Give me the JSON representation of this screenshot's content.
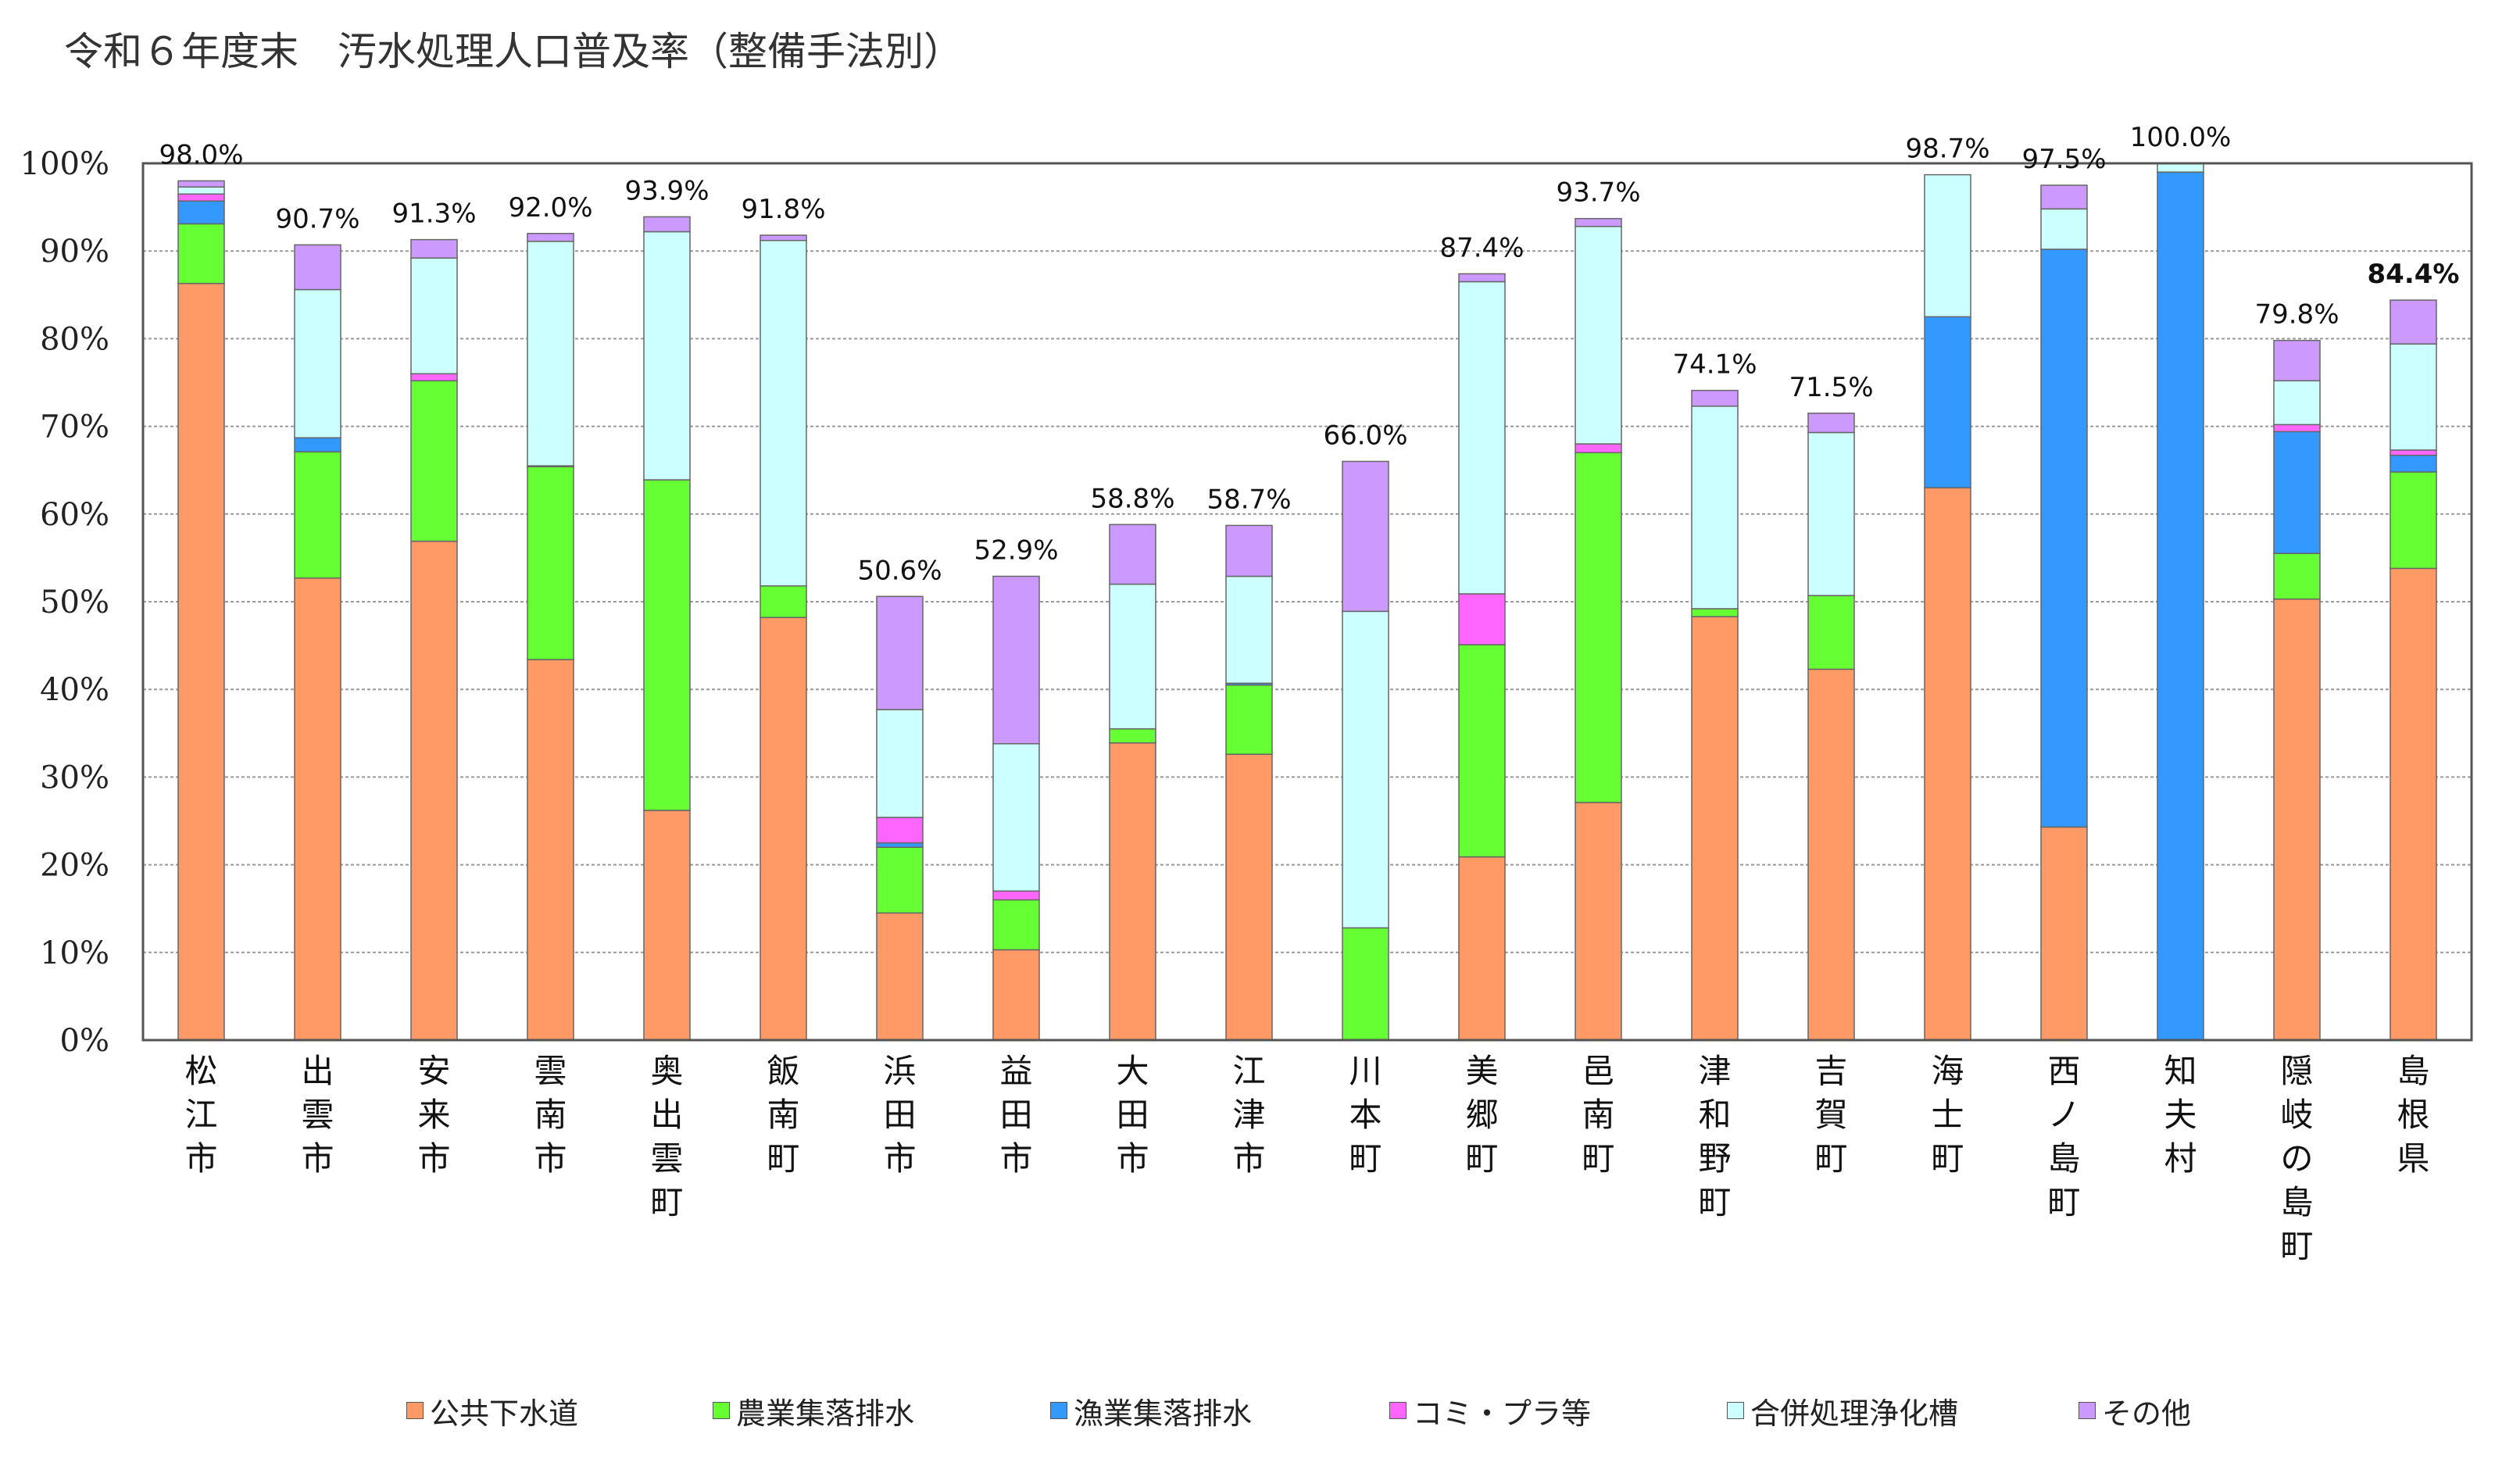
{
  "chart_data": {
    "type": "bar",
    "stacked": true,
    "title": "令和６年度末　汚水処理人口普及率（整備手法別）",
    "ylim": [
      0,
      100
    ],
    "yticks": [
      "0%",
      "10%",
      "20%",
      "30%",
      "40%",
      "50%",
      "60%",
      "70%",
      "80%",
      "90%",
      "100%"
    ],
    "grid": true,
    "legend_position": "bottom",
    "categories": [
      "松江市",
      "出雲市",
      "安来市",
      "雲南市",
      "奥出雲町",
      "飯南町",
      "浜田市",
      "益田市",
      "大田市",
      "江津市",
      "川本町",
      "美郷町",
      "邑南町",
      "津和野町",
      "吉賀町",
      "海士町",
      "西ノ島町",
      "知夫村",
      "隠岐の島町",
      "島根県"
    ],
    "totals": [
      "98.0%",
      "90.7%",
      "91.3%",
      "92.0%",
      "93.9%",
      "91.8%",
      "50.6%",
      "52.9%",
      "58.8%",
      "58.7%",
      "66.0%",
      "87.4%",
      "93.7%",
      "74.1%",
      "71.5%",
      "98.7%",
      "97.5%",
      "100.0%",
      "79.8%",
      "84.4%"
    ],
    "total_colors": [
      "#111111",
      "#111111",
      "#111111",
      "#111111",
      "#111111",
      "#111111",
      "#111111",
      "#111111",
      "#111111",
      "#111111",
      "#111111",
      "#111111",
      "#111111",
      "#111111",
      "#111111",
      "#111111",
      "#111111",
      "#111111",
      "#111111",
      "#e00000"
    ],
    "series": [
      {
        "name": "公共下水道",
        "color": "#ff9966",
        "values": [
          86.3,
          52.7,
          56.9,
          43.4,
          26.2,
          48.2,
          14.5,
          10.3,
          33.9,
          32.6,
          0.0,
          20.9,
          27.1,
          48.3,
          42.3,
          63.0,
          24.3,
          0.0,
          50.3,
          53.8
        ]
      },
      {
        "name": "農業集落排水",
        "color": "#66ff33",
        "values": [
          6.8,
          14.4,
          18.3,
          22.0,
          37.7,
          3.6,
          7.5,
          5.7,
          1.6,
          7.9,
          12.8,
          24.2,
          39.9,
          0.9,
          8.4,
          0.0,
          0.0,
          0.0,
          5.2,
          11.0
        ]
      },
      {
        "name": "漁業集落排水",
        "color": "#3399ff",
        "values": [
          2.6,
          1.6,
          0.0,
          0.1,
          0.0,
          0.0,
          0.5,
          0.0,
          0.0,
          0.2,
          0.0,
          0.0,
          0.0,
          0.0,
          0.0,
          19.5,
          65.9,
          99.0,
          13.9,
          1.9
        ]
      },
      {
        "name": "コミ・プラ等",
        "color": "#ff66ff",
        "values": [
          0.8,
          0.0,
          0.8,
          0.0,
          0.0,
          0.0,
          2.9,
          1.0,
          0.0,
          0.0,
          0.0,
          5.8,
          1.0,
          0.0,
          0.0,
          0.0,
          0.0,
          0.0,
          0.8,
          0.6
        ]
      },
      {
        "name": "合併処理浄化槽",
        "color": "#ccffff",
        "values": [
          0.8,
          16.9,
          13.2,
          25.6,
          28.3,
          39.4,
          12.3,
          16.8,
          16.5,
          12.2,
          36.1,
          35.6,
          24.8,
          23.1,
          18.6,
          16.2,
          4.6,
          1.0,
          5.0,
          12.1
        ]
      },
      {
        "name": "その他",
        "color": "#cc99ff",
        "values": [
          0.7,
          5.1,
          2.1,
          0.9,
          1.7,
          0.6,
          12.9,
          19.1,
          6.8,
          5.8,
          17.1,
          0.9,
          0.9,
          1.8,
          2.2,
          0.0,
          2.7,
          0.0,
          4.6,
          5.0
        ]
      }
    ]
  }
}
